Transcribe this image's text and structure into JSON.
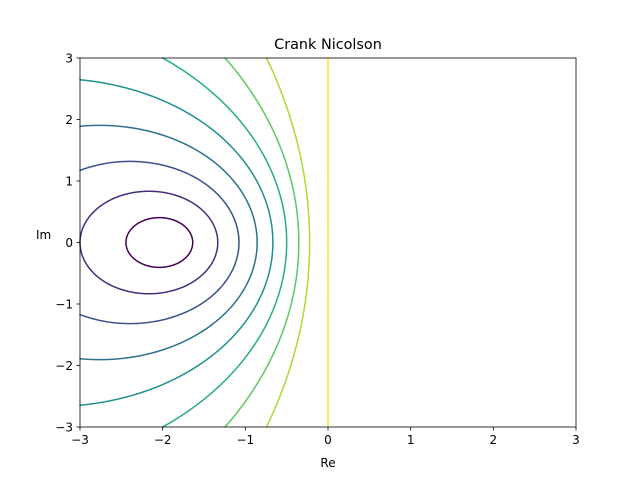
{
  "chart_data": {
    "type": "contour",
    "title": "Crank Nicolson",
    "xlabel": "Re",
    "ylabel": "Im",
    "xlim": [
      -3,
      3
    ],
    "ylim": [
      -3,
      3
    ],
    "xticks": [
      -3,
      -2,
      -1,
      0,
      1,
      2,
      3
    ],
    "yticks": [
      -3,
      -2,
      -1,
      0,
      1,
      2,
      3
    ],
    "xtick_labels": [
      "−3",
      "−2",
      "−1",
      "0",
      "1",
      "2",
      "3"
    ],
    "ytick_labels": [
      "−3",
      "−2",
      "−1",
      "0",
      "1",
      "2",
      "3"
    ],
    "function": "|(1 + z/2) / (1 - z/2)|",
    "colormap": "viridis",
    "grid": false,
    "levels": [
      {
        "value": 0.1,
        "color": "#440154"
      },
      {
        "value": 0.2,
        "color": "#472c7a"
      },
      {
        "value": 0.3,
        "color": "#3b518b"
      },
      {
        "value": 0.4,
        "color": "#2c718e"
      },
      {
        "value": 0.5,
        "color": "#21908d"
      },
      {
        "value": 0.6,
        "color": "#27ad81"
      },
      {
        "value": 0.7,
        "color": "#5cc863"
      },
      {
        "value": 0.8,
        "color": "#aadc32"
      },
      {
        "value": 1.0,
        "color": "#fde725"
      }
    ]
  }
}
